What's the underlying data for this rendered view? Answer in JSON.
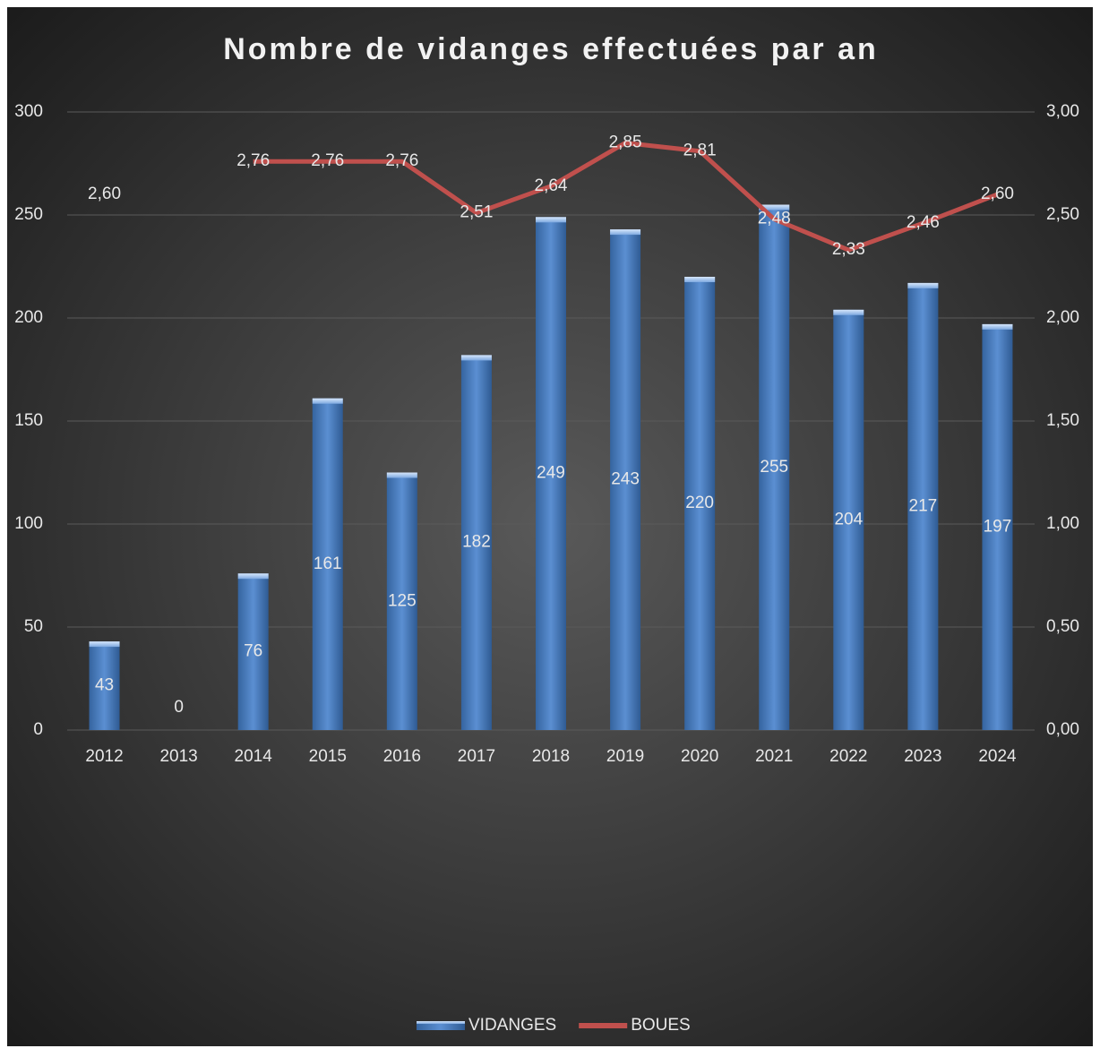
{
  "chart_data": {
    "type": "bar_line",
    "title": "Nombre de vidanges effectuées par an",
    "categories": [
      "2012",
      "2013",
      "2014",
      "2015",
      "2016",
      "2017",
      "2018",
      "2019",
      "2020",
      "2021",
      "2022",
      "2023",
      "2024"
    ],
    "series": [
      {
        "name": "VIDANGES",
        "type": "bar",
        "color": "#4f81bd",
        "axis": "y",
        "values": [
          43,
          0,
          76,
          161,
          125,
          182,
          249,
          243,
          220,
          255,
          204,
          217,
          197
        ]
      },
      {
        "name": "BOUES",
        "type": "line",
        "color": "#c0504d",
        "axis": "y2",
        "values": [
          2.6,
          null,
          2.76,
          2.76,
          2.76,
          2.51,
          2.64,
          2.85,
          2.81,
          2.48,
          2.33,
          2.46,
          2.6
        ],
        "value_labels": [
          "2,60",
          null,
          "2,76",
          "2,76",
          "2,76",
          "2,51",
          "2,64",
          "2,85",
          "2,81",
          "2,48",
          "2,33",
          "2,46",
          "2,60"
        ]
      }
    ],
    "ylim": [
      0,
      300
    ],
    "yticks": [
      0,
      50,
      100,
      150,
      200,
      250,
      300
    ],
    "y2lim": [
      0,
      3
    ],
    "y2ticks": [
      {
        "value": 0,
        "label": "0,00"
      },
      {
        "value": 0.5,
        "label": "0,50"
      },
      {
        "value": 1,
        "label": "1,00"
      },
      {
        "value": 1.5,
        "label": "1,50"
      },
      {
        "value": 2,
        "label": "2,00"
      },
      {
        "value": 2.5,
        "label": "2,50"
      },
      {
        "value": 3,
        "label": "3,00"
      }
    ],
    "grid": true,
    "legend": "bottom"
  }
}
